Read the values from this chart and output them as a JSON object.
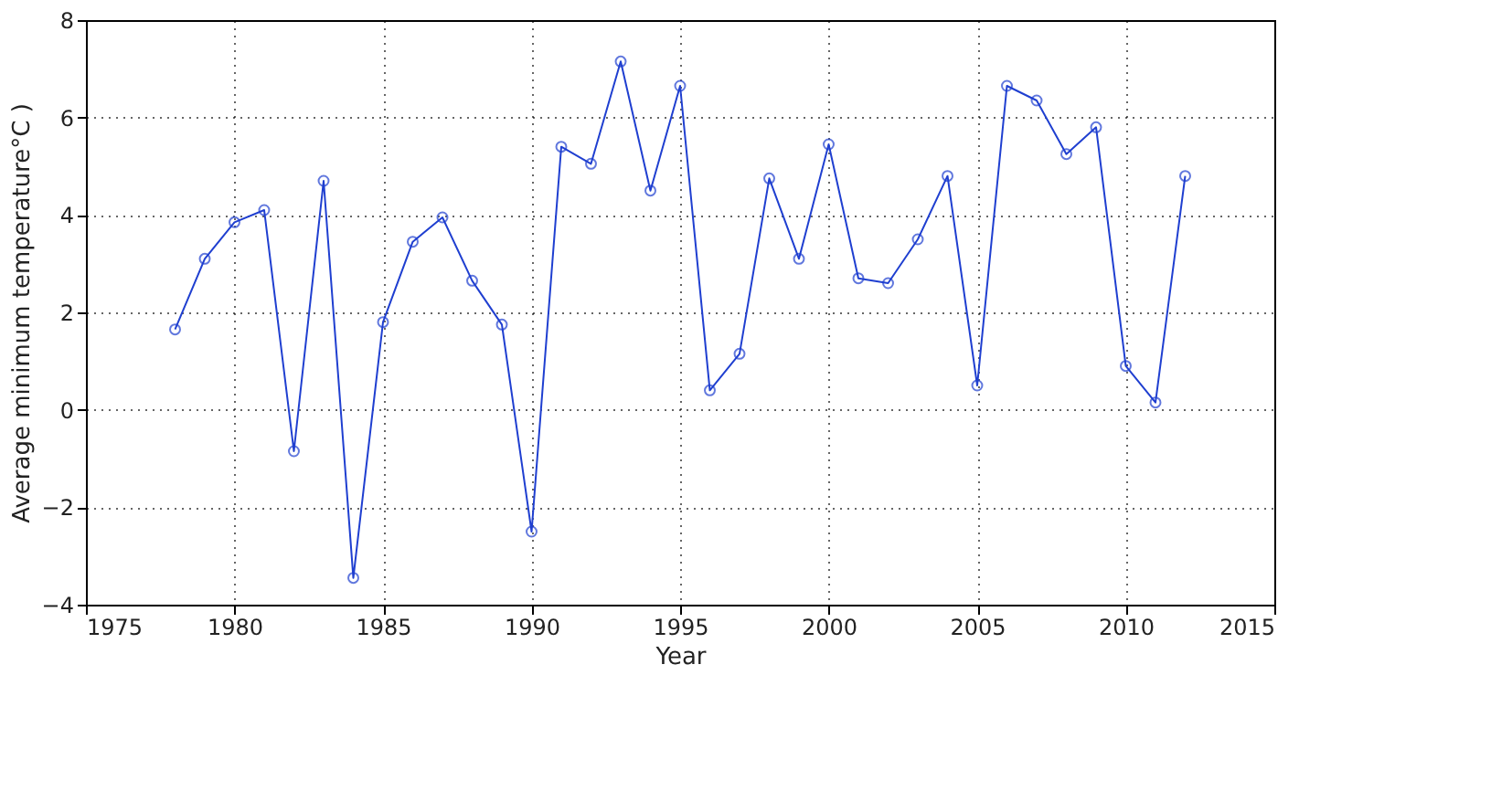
{
  "chart_data": {
    "type": "line",
    "xlabel": "Year",
    "ylabel": "Average minimum temperature°C )",
    "x": [
      1978,
      1979,
      1980,
      1981,
      1982,
      1983,
      1984,
      1985,
      1986,
      1987,
      1988,
      1989,
      1990,
      1991,
      1992,
      1993,
      1994,
      1995,
      1996,
      1997,
      1998,
      1999,
      2000,
      2001,
      2002,
      2003,
      2004,
      2005,
      2006,
      2007,
      2008,
      2009,
      2010,
      2011,
      2012
    ],
    "series": [
      {
        "color": "#1f3fd0",
        "values": [
          1.65,
          3.1,
          3.85,
          4.1,
          -0.85,
          4.7,
          -3.45,
          1.8,
          3.45,
          3.95,
          2.65,
          1.75,
          -2.5,
          5.4,
          5.05,
          7.15,
          4.5,
          6.65,
          0.4,
          1.15,
          4.75,
          3.1,
          5.45,
          2.7,
          2.6,
          3.5,
          4.8,
          0.5,
          6.65,
          6.35,
          5.25,
          5.8,
          0.9,
          0.15,
          4.8
        ]
      }
    ],
    "xlim": [
      1975,
      2015
    ],
    "xticks": [
      1975,
      1980,
      1985,
      1990,
      1995,
      2000,
      2005,
      2010,
      2015
    ],
    "ylim": [
      -4,
      8
    ],
    "yticks": [
      -4,
      -2,
      0,
      2,
      4,
      6,
      8
    ],
    "grid": true,
    "marker": "circle",
    "line_style": "solid"
  }
}
